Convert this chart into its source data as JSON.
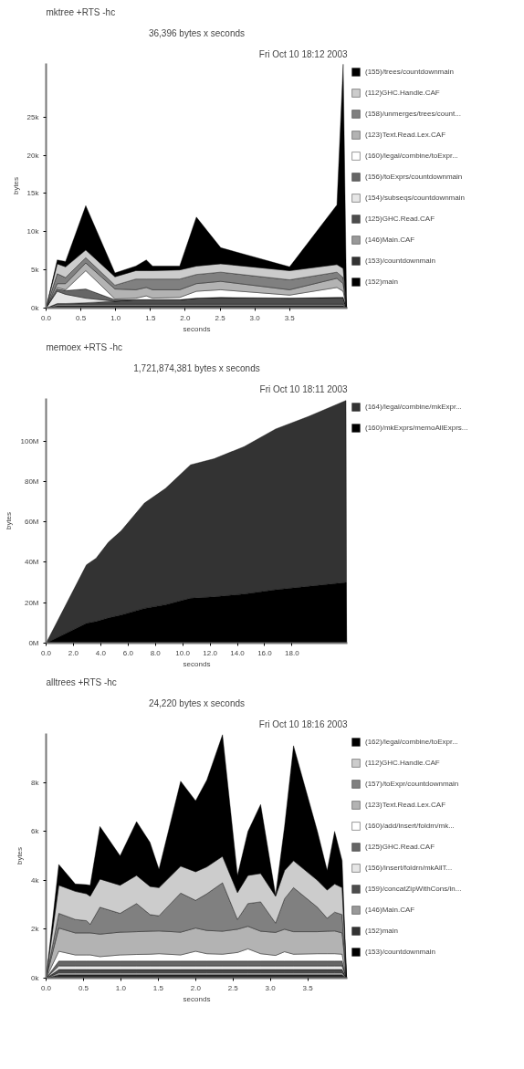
{
  "chart_data": [
    {
      "type": "area",
      "stacked": true,
      "title": "mktree +RTS -hc",
      "subtitle": "36,396 bytes x seconds",
      "annotations": [
        "Fri Oct 10 18:12 2003"
      ],
      "xlabel": "seconds",
      "ylabel": "bytes",
      "legend": "right",
      "grid": false,
      "x": [
        0,
        0.16,
        0.28,
        0.57,
        0.99,
        1.29,
        1.44,
        1.53,
        1.92,
        2.16,
        2.51,
        3.5,
        4.18,
        4.27,
        4.32
      ],
      "xlim": [
        0,
        4.33
      ],
      "ylim": [
        0,
        32000
      ],
      "xticks": [
        {
          "value": 0,
          "label": "0.0"
        },
        {
          "value": 0.5,
          "label": "0.5"
        },
        {
          "value": 1,
          "label": "1.0"
        },
        {
          "value": 1.5,
          "label": "1.5"
        },
        {
          "value": 2,
          "label": "2.0"
        },
        {
          "value": 2.5,
          "label": "2.5"
        },
        {
          "value": 3,
          "label": "3.0"
        },
        {
          "value": 3.5,
          "label": "3.5"
        }
      ],
      "yticks": [
        {
          "value": 0,
          "label": "0k"
        },
        {
          "value": 5000,
          "label": "5k"
        },
        {
          "value": 10000,
          "label": "10k"
        },
        {
          "value": 15000,
          "label": "15k"
        },
        {
          "value": 20000,
          "label": "20k"
        },
        {
          "value": 25000,
          "label": "25k"
        }
      ],
      "series": [
        {
          "name": "(152)main",
          "color": "#000000",
          "values": [
            0,
            100,
            100,
            100,
            100,
            100,
            100,
            100,
            100,
            100,
            100,
            100,
            100,
            100,
            0
          ]
        },
        {
          "name": "(153)/countdownmain",
          "color": "#333333",
          "values": [
            0,
            200,
            200,
            200,
            200,
            200,
            200,
            200,
            200,
            200,
            200,
            200,
            200,
            200,
            0
          ]
        },
        {
          "name": "(146)Main.CAF",
          "color": "#999999",
          "values": [
            0,
            200,
            200,
            200,
            200,
            200,
            200,
            200,
            200,
            200,
            200,
            200,
            200,
            200,
            0
          ]
        },
        {
          "name": "(125)GHC.Read.CAF",
          "color": "#4d4d4d",
          "values": [
            0,
            100,
            100,
            200,
            400,
            600,
            600,
            600,
            600,
            800,
            900,
            800,
            900,
            900,
            0
          ]
        },
        {
          "name": "(154)/subseqs/countdownmain",
          "color": "#e6e6e6",
          "values": [
            0,
            1600,
            1200,
            600,
            0,
            0,
            0,
            0,
            0,
            0,
            0,
            0,
            0,
            0,
            0
          ]
        },
        {
          "name": "(156)/toExprs/countdownmain",
          "color": "#666666",
          "values": [
            0,
            300,
            500,
            1200,
            200,
            0,
            0,
            0,
            0,
            0,
            0,
            0,
            0,
            0,
            0
          ]
        },
        {
          "name": "(160)/legal/combine/toExpr...",
          "color": "#ffffff",
          "values": [
            0,
            200,
            100,
            2400,
            100,
            200,
            500,
            200,
            300,
            900,
            1000,
            400,
            1300,
            800,
            0
          ]
        },
        {
          "name": "(123)Text.Read.Lex.CAF",
          "color": "#b3b3b3",
          "values": [
            0,
            500,
            800,
            1000,
            1300,
            1100,
            1100,
            1100,
            1000,
            1000,
            1100,
            700,
            1200,
            1000,
            0
          ]
        },
        {
          "name": "(158)/unmerges/trees/count...",
          "color": "#808080",
          "values": [
            0,
            1300,
            800,
            700,
            500,
            1400,
            1100,
            1400,
            1400,
            1200,
            1200,
            1300,
            800,
            800,
            0
          ]
        },
        {
          "name": "(112)GHC.Handle.CAF",
          "color": "#cccccc",
          "values": [
            0,
            1300,
            1400,
            1000,
            1100,
            1100,
            1100,
            1100,
            1200,
            1100,
            1100,
            1200,
            1000,
            1200,
            0
          ]
        },
        {
          "name": "(155)/trees/countdownmain",
          "color": "#000000",
          "values": [
            0,
            500,
            700,
            5800,
            500,
            600,
            1400,
            600,
            500,
            6400,
            2100,
            500,
            7800,
            26700,
            0
          ]
        }
      ]
    },
    {
      "type": "area",
      "stacked": true,
      "title": "memoex +RTS -hc",
      "subtitle": "1,721,874,381 bytes x seconds",
      "annotations": [
        "Fri Oct 10 18:11 2003"
      ],
      "xlabel": "seconds",
      "ylabel": "bytes",
      "legend": "right",
      "grid": false,
      "x": [
        0,
        2.95,
        3.66,
        4.57,
        5.49,
        7.2,
        8.74,
        10.57,
        12.3,
        14.5,
        16.8,
        19.2,
        21.95,
        22.0
      ],
      "xlim": [
        0,
        22.05
      ],
      "ylim": [
        0,
        121000000
      ],
      "xticks": [
        {
          "value": 0,
          "label": "0.0"
        },
        {
          "value": 2,
          "label": "2.0"
        },
        {
          "value": 4,
          "label": "4.0"
        },
        {
          "value": 6,
          "label": "6.0"
        },
        {
          "value": 8,
          "label": "8.0"
        },
        {
          "value": 10,
          "label": "10.0"
        },
        {
          "value": 12,
          "label": "12.0"
        },
        {
          "value": 14,
          "label": "14.0"
        },
        {
          "value": 16,
          "label": "16.0"
        },
        {
          "value": 18,
          "label": "18.0"
        }
      ],
      "yticks": [
        {
          "value": 0,
          "label": "0M"
        },
        {
          "value": 20000000,
          "label": "20M"
        },
        {
          "value": 40000000,
          "label": "40M"
        },
        {
          "value": 60000000,
          "label": "60M"
        },
        {
          "value": 80000000,
          "label": "80M"
        },
        {
          "value": 100000000,
          "label": "100M"
        }
      ],
      "series": [
        {
          "name": "(160)/mkExprs/memoAllExprs...",
          "color": "#000000",
          "values": [
            0,
            9800000,
            10700000,
            12500000,
            13900000,
            17200000,
            19000000,
            22200000,
            22900000,
            24300000,
            26400000,
            28100000,
            30000000,
            0
          ]
        },
        {
          "name": "(164)/legal/combine/mkExpr...",
          "color": "#333333",
          "values": [
            0,
            28900000,
            31300000,
            37500000,
            41600000,
            52100000,
            57500000,
            66000000,
            68300000,
            72900000,
            79500000,
            84000000,
            90000000,
            0
          ]
        }
      ]
    },
    {
      "type": "area",
      "stacked": true,
      "title": "alltrees +RTS -hc",
      "subtitle": "24,220 bytes x seconds",
      "annotations": [
        "Fri Oct 10 18:16 2003"
      ],
      "xlabel": "seconds",
      "ylabel": "bytes",
      "legend": "right",
      "grid": false,
      "x": [
        0,
        0.17,
        0.39,
        0.54,
        0.59,
        0.72,
        0.99,
        1.21,
        1.39,
        1.51,
        1.8,
        2.0,
        2.15,
        2.36,
        2.56,
        2.7,
        2.87,
        3.07,
        3.19,
        3.31,
        3.63,
        3.76,
        3.86,
        3.96,
        4.02
      ],
      "xlim": [
        0,
        4.03
      ],
      "ylim": [
        0,
        10000
      ],
      "xticks": [
        {
          "value": 0,
          "label": "0.0"
        },
        {
          "value": 0.5,
          "label": "0.5"
        },
        {
          "value": 1,
          "label": "1.0"
        },
        {
          "value": 1.5,
          "label": "1.5"
        },
        {
          "value": 2,
          "label": "2.0"
        },
        {
          "value": 2.5,
          "label": "2.5"
        },
        {
          "value": 3,
          "label": "3.0"
        },
        {
          "value": 3.5,
          "label": "3.5"
        }
      ],
      "yticks": [
        {
          "value": 0,
          "label": "0k"
        },
        {
          "value": 2000,
          "label": "2k"
        },
        {
          "value": 4000,
          "label": "4k"
        },
        {
          "value": 6000,
          "label": "6k"
        },
        {
          "value": 8000,
          "label": "8k"
        }
      ],
      "series": [
        {
          "name": "(153)/countdownmain",
          "color": "#000000",
          "values": [
            0,
            50,
            50,
            50,
            50,
            50,
            50,
            50,
            50,
            50,
            50,
            50,
            50,
            50,
            50,
            50,
            50,
            50,
            50,
            50,
            50,
            50,
            50,
            50,
            0
          ]
        },
        {
          "name": "(152)main",
          "color": "#333333",
          "values": [
            0,
            80,
            80,
            80,
            80,
            80,
            80,
            80,
            80,
            80,
            80,
            80,
            80,
            80,
            80,
            80,
            80,
            80,
            80,
            80,
            80,
            80,
            80,
            80,
            0
          ]
        },
        {
          "name": "(146)Main.CAF",
          "color": "#999999",
          "values": [
            0,
            100,
            100,
            100,
            100,
            100,
            100,
            100,
            100,
            100,
            100,
            100,
            100,
            100,
            100,
            100,
            100,
            100,
            100,
            100,
            100,
            100,
            100,
            100,
            0
          ]
        },
        {
          "name": "(159)/concatZipWithCons/in...",
          "color": "#4d4d4d",
          "values": [
            0,
            120,
            120,
            120,
            120,
            120,
            120,
            120,
            120,
            120,
            120,
            120,
            120,
            120,
            120,
            120,
            120,
            120,
            120,
            120,
            120,
            120,
            120,
            120,
            0
          ]
        },
        {
          "name": "(156)/insert/foldrn/mkAllT...",
          "color": "#e6e6e6",
          "values": [
            0,
            150,
            150,
            150,
            150,
            150,
            150,
            150,
            150,
            150,
            150,
            150,
            150,
            150,
            150,
            150,
            150,
            150,
            150,
            150,
            150,
            150,
            150,
            150,
            0
          ]
        },
        {
          "name": "(125)GHC.Read.CAF",
          "color": "#666666",
          "values": [
            0,
            200,
            200,
            200,
            200,
            200,
            200,
            200,
            200,
            200,
            200,
            200,
            200,
            200,
            200,
            200,
            200,
            200,
            200,
            200,
            200,
            200,
            200,
            200,
            0
          ]
        },
        {
          "name": "(160)/add/insert/foldrn/mk...",
          "color": "#ffffff",
          "values": [
            0,
            400,
            250,
            250,
            250,
            180,
            250,
            270,
            280,
            300,
            250,
            400,
            300,
            280,
            350,
            500,
            300,
            230,
            380,
            280,
            300,
            300,
            300,
            280,
            0
          ]
        },
        {
          "name": "(123)Text.Read.Lex.CAF",
          "color": "#b3b3b3",
          "values": [
            0,
            950,
            900,
            900,
            900,
            920,
            930,
            930,
            940,
            930,
            930,
            950,
            950,
            940,
            950,
            920,
            920,
            940,
            920,
            920,
            900,
            920,
            930,
            870,
            0
          ]
        },
        {
          "name": "(157)/toExpr/countdownmain",
          "color": "#808080",
          "values": [
            0,
            600,
            550,
            500,
            350,
            1100,
            770,
            1150,
            680,
            620,
            1600,
            1130,
            1500,
            1980,
            400,
            930,
            1200,
            380,
            1250,
            1800,
            1000,
            530,
            770,
            750,
            0
          ]
        },
        {
          "name": "(112)GHC.Handle.CAF",
          "color": "#cccccc",
          "values": [
            0,
            1150,
            1150,
            1100,
            1150,
            1150,
            1150,
            1150,
            1150,
            1150,
            1100,
            1170,
            1100,
            1080,
            1100,
            1150,
            1160,
            1100,
            1150,
            1100,
            1100,
            1150,
            1150,
            1100,
            0
          ]
        },
        {
          "name": "(162)/legal/combine/toExpr...",
          "color": "#000000",
          "values": [
            0,
            850,
            300,
            370,
            450,
            2150,
            1200,
            2200,
            1800,
            750,
            3470,
            2900,
            3550,
            4970,
            700,
            1800,
            2820,
            50,
            1800,
            4700,
            2000,
            800,
            2150,
            1100,
            0
          ]
        }
      ]
    }
  ]
}
